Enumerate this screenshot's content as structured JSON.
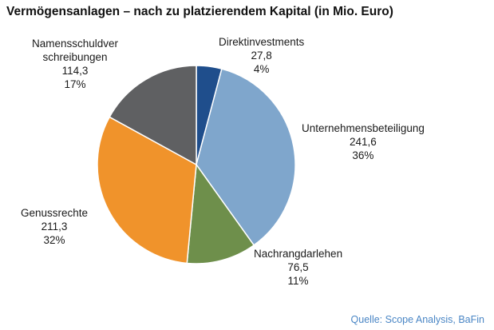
{
  "title": "Vermögensanlagen – nach zu platzierendem Kapital (in Mio. Euro)",
  "source": "Quelle: Scope Analysis, BaFin",
  "chart_data": {
    "type": "pie",
    "title": "Vermögensanlagen – nach zu platzierendem Kapital (in Mio. Euro)",
    "slices": [
      {
        "label_lines": [
          "Direktinvestments"
        ],
        "value": 27.8,
        "value_text": "27,8",
        "percent_text": "4%",
        "color": "#1f4e8c"
      },
      {
        "label_lines": [
          "Unternehmensbeteiligung"
        ],
        "value": 241.6,
        "value_text": "241,6",
        "percent_text": "36%",
        "color": "#7fa6cc"
      },
      {
        "label_lines": [
          "Nachrangdarlehen"
        ],
        "value": 76.5,
        "value_text": "76,5",
        "percent_text": "11%",
        "color": "#6e8f4b"
      },
      {
        "label_lines": [
          "Genussrechte"
        ],
        "value": 211.3,
        "value_text": "211,3",
        "percent_text": "32%",
        "color": "#f0932b"
      },
      {
        "label_lines": [
          "Namensschuldver",
          "schreibungen"
        ],
        "value": 114.3,
        "value_text": "114,3",
        "percent_text": "17%",
        "color": "#5f6062"
      }
    ]
  }
}
